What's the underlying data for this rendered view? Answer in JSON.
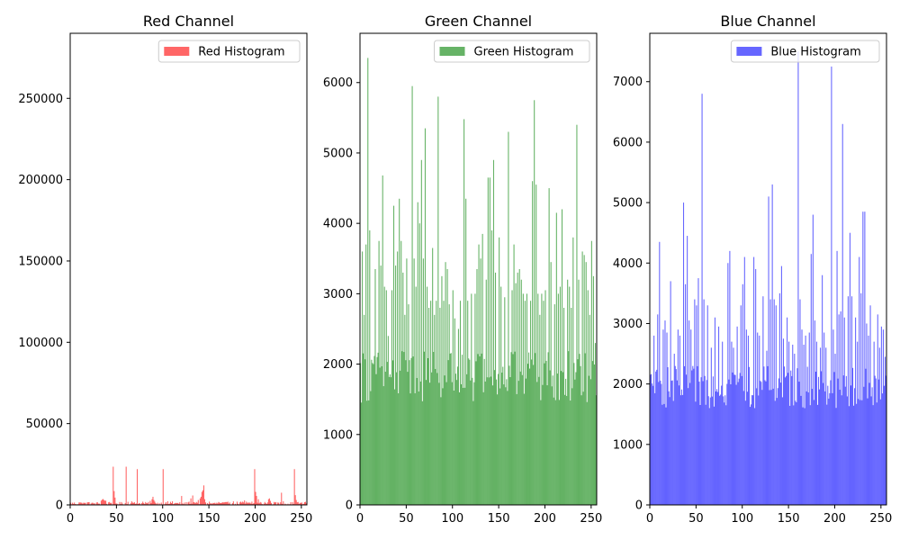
{
  "chart_data": [
    {
      "type": "bar",
      "title": "Red Channel",
      "color": "#ff0000",
      "opacity": 0.6,
      "legend": "Red Histogram",
      "legend_position": "upper-right",
      "xlim": [
        0,
        256
      ],
      "ylim": [
        0,
        290000
      ],
      "xticks": [
        0,
        50,
        100,
        150,
        200,
        250
      ],
      "yticks": [
        0,
        50000,
        100000,
        150000,
        200000,
        250000
      ],
      "baseline": {
        "low": 0,
        "high": 1800
      },
      "spikes": [
        [
          9,
          1500
        ],
        [
          10,
          1500
        ],
        [
          12,
          1300
        ],
        [
          20,
          1700
        ],
        [
          24,
          1300
        ],
        [
          33,
          2600
        ],
        [
          34,
          3200
        ],
        [
          35,
          3600
        ],
        [
          36,
          3000
        ],
        [
          37,
          2600
        ],
        [
          38,
          2600
        ],
        [
          42,
          1800
        ],
        [
          44,
          1300
        ],
        [
          46,
          23500
        ],
        [
          47,
          8500
        ],
        [
          48,
          4500
        ],
        [
          60,
          23500
        ],
        [
          62,
          1900
        ],
        [
          66,
          2200
        ],
        [
          72,
          22000
        ],
        [
          78,
          2000
        ],
        [
          86,
          2500
        ],
        [
          88,
          3500
        ],
        [
          89,
          5000
        ],
        [
          90,
          3000
        ],
        [
          91,
          2000
        ],
        [
          100,
          22000
        ],
        [
          105,
          2200
        ],
        [
          108,
          1900
        ],
        [
          110,
          2200
        ],
        [
          120,
          5500
        ],
        [
          128,
          2000
        ],
        [
          130,
          4000
        ],
        [
          132,
          5800
        ],
        [
          134,
          1500
        ],
        [
          138,
          3000
        ],
        [
          140,
          4000
        ],
        [
          141,
          5000
        ],
        [
          142,
          8000
        ],
        [
          143,
          9000
        ],
        [
          144,
          12000
        ],
        [
          145,
          3500
        ],
        [
          150,
          2000
        ],
        [
          160,
          1800
        ],
        [
          170,
          2000
        ],
        [
          172,
          1500
        ],
        [
          176,
          2200
        ],
        [
          180,
          2000
        ],
        [
          184,
          2000
        ],
        [
          186,
          2000
        ],
        [
          188,
          2800
        ],
        [
          190,
          2000
        ],
        [
          196,
          2000
        ],
        [
          199,
          22000
        ],
        [
          200,
          8000
        ],
        [
          201,
          5500
        ],
        [
          203,
          3500
        ],
        [
          205,
          1800
        ],
        [
          210,
          1800
        ],
        [
          214,
          3500
        ],
        [
          215,
          4000
        ],
        [
          216,
          2500
        ],
        [
          220,
          1800
        ],
        [
          228,
          7500
        ],
        [
          230,
          2200
        ],
        [
          242,
          22000
        ],
        [
          243,
          6000
        ],
        [
          244,
          3000
        ],
        [
          246,
          1800
        ],
        [
          250,
          1500
        ],
        [
          254,
          1900
        ]
      ]
    },
    {
      "type": "bar",
      "title": "Green Channel",
      "color": "#008000",
      "opacity": 0.6,
      "legend": "Green Histogram",
      "legend_position": "upper-right",
      "xlim": [
        0,
        256
      ],
      "ylim": [
        0,
        6700
      ],
      "xticks": [
        0,
        50,
        100,
        150,
        200,
        250
      ],
      "yticks": [
        0,
        1000,
        2000,
        3000,
        4000,
        5000,
        6000
      ],
      "baseline": {
        "low": 1450,
        "high": 2200
      },
      "spikes": [
        [
          2,
          3600
        ],
        [
          4,
          2700
        ],
        [
          6,
          3700
        ],
        [
          8,
          6350
        ],
        [
          10,
          3900
        ],
        [
          14,
          2000
        ],
        [
          16,
          3350
        ],
        [
          18,
          2100
        ],
        [
          20,
          3750
        ],
        [
          22,
          3400
        ],
        [
          24,
          4680
        ],
        [
          26,
          3100
        ],
        [
          28,
          3050
        ],
        [
          30,
          2400
        ],
        [
          34,
          3050
        ],
        [
          36,
          4250
        ],
        [
          38,
          3400
        ],
        [
          40,
          3600
        ],
        [
          42,
          4350
        ],
        [
          44,
          3750
        ],
        [
          46,
          3300
        ],
        [
          48,
          2700
        ],
        [
          50,
          3500
        ],
        [
          52,
          2850
        ],
        [
          56,
          5950
        ],
        [
          58,
          3500
        ],
        [
          60,
          3100
        ],
        [
          62,
          4300
        ],
        [
          64,
          4000
        ],
        [
          66,
          4900
        ],
        [
          68,
          3500
        ],
        [
          70,
          5350
        ],
        [
          72,
          3100
        ],
        [
          74,
          2800
        ],
        [
          76,
          2900
        ],
        [
          78,
          3650
        ],
        [
          80,
          2700
        ],
        [
          82,
          2900
        ],
        [
          84,
          5800
        ],
        [
          86,
          2800
        ],
        [
          88,
          3250
        ],
        [
          90,
          2900
        ],
        [
          92,
          3450
        ],
        [
          94,
          3350
        ],
        [
          96,
          2850
        ],
        [
          100,
          3050
        ],
        [
          102,
          2650
        ],
        [
          106,
          2500
        ],
        [
          108,
          2900
        ],
        [
          112,
          5480
        ],
        [
          114,
          4350
        ],
        [
          116,
          2900
        ],
        [
          120,
          3000
        ],
        [
          124,
          3000
        ],
        [
          126,
          3350
        ],
        [
          128,
          3700
        ],
        [
          130,
          3500
        ],
        [
          132,
          3850
        ],
        [
          136,
          3200
        ],
        [
          138,
          4650
        ],
        [
          140,
          4650
        ],
        [
          142,
          3900
        ],
        [
          144,
          4900
        ],
        [
          146,
          3300
        ],
        [
          150,
          3800
        ],
        [
          152,
          3100
        ],
        [
          156,
          2950
        ],
        [
          160,
          5300
        ],
        [
          164,
          3050
        ],
        [
          166,
          3700
        ],
        [
          168,
          3150
        ],
        [
          170,
          3300
        ],
        [
          172,
          3350
        ],
        [
          174,
          3200
        ],
        [
          176,
          3000
        ],
        [
          178,
          2900
        ],
        [
          180,
          3000
        ],
        [
          184,
          2900
        ],
        [
          186,
          4600
        ],
        [
          188,
          5750
        ],
        [
          190,
          4550
        ],
        [
          192,
          3000
        ],
        [
          194,
          2700
        ],
        [
          196,
          3000
        ],
        [
          198,
          2900
        ],
        [
          200,
          3050
        ],
        [
          204,
          4500
        ],
        [
          206,
          3450
        ],
        [
          210,
          2850
        ],
        [
          212,
          4150
        ],
        [
          214,
          3000
        ],
        [
          216,
          3100
        ],
        [
          218,
          4200
        ],
        [
          220,
          2800
        ],
        [
          224,
          3200
        ],
        [
          226,
          3100
        ],
        [
          228,
          2800
        ],
        [
          230,
          3800
        ],
        [
          234,
          5400
        ],
        [
          236,
          3200
        ],
        [
          240,
          3600
        ],
        [
          242,
          3550
        ],
        [
          244,
          3450
        ],
        [
          246,
          3050
        ],
        [
          248,
          2700
        ],
        [
          250,
          3750
        ],
        [
          252,
          3250
        ],
        [
          254,
          2300
        ]
      ]
    },
    {
      "type": "bar",
      "title": "Blue Channel",
      "color": "#0000ff",
      "opacity": 0.6,
      "legend": "Blue Histogram",
      "legend_position": "upper-right",
      "xlim": [
        0,
        256
      ],
      "ylim": [
        0,
        7800
      ],
      "xticks": [
        0,
        50,
        100,
        150,
        200,
        250
      ],
      "yticks": [
        0,
        1000,
        2000,
        3000,
        4000,
        5000,
        6000,
        7000
      ],
      "baseline": {
        "low": 1600,
        "high": 2300
      },
      "spikes": [
        [
          4,
          2800
        ],
        [
          8,
          3150
        ],
        [
          10,
          4350
        ],
        [
          14,
          2900
        ],
        [
          16,
          3050
        ],
        [
          18,
          2850
        ],
        [
          22,
          3700
        ],
        [
          26,
          2500
        ],
        [
          30,
          2900
        ],
        [
          32,
          2800
        ],
        [
          36,
          5000
        ],
        [
          38,
          3650
        ],
        [
          40,
          4450
        ],
        [
          42,
          3050
        ],
        [
          44,
          2900
        ],
        [
          48,
          3400
        ],
        [
          50,
          3300
        ],
        [
          52,
          3750
        ],
        [
          56,
          6800
        ],
        [
          58,
          3400
        ],
        [
          62,
          3300
        ],
        [
          66,
          2600
        ],
        [
          70,
          3100
        ],
        [
          74,
          2950
        ],
        [
          78,
          2700
        ],
        [
          84,
          4000
        ],
        [
          86,
          4200
        ],
        [
          88,
          2700
        ],
        [
          90,
          2600
        ],
        [
          94,
          2950
        ],
        [
          98,
          3300
        ],
        [
          100,
          3650
        ],
        [
          102,
          4100
        ],
        [
          104,
          2900
        ],
        [
          106,
          2800
        ],
        [
          112,
          4100
        ],
        [
          114,
          3900
        ],
        [
          116,
          2850
        ],
        [
          118,
          2800
        ],
        [
          122,
          3450
        ],
        [
          126,
          2550
        ],
        [
          128,
          5100
        ],
        [
          130,
          3400
        ],
        [
          132,
          5300
        ],
        [
          134,
          3400
        ],
        [
          136,
          3300
        ],
        [
          140,
          3500
        ],
        [
          142,
          3950
        ],
        [
          144,
          2750
        ],
        [
          148,
          3100
        ],
        [
          150,
          2700
        ],
        [
          154,
          2650
        ],
        [
          156,
          2500
        ],
        [
          160,
          7500
        ],
        [
          162,
          3400
        ],
        [
          164,
          2900
        ],
        [
          166,
          2650
        ],
        [
          168,
          2800
        ],
        [
          172,
          2850
        ],
        [
          174,
          4150
        ],
        [
          176,
          4800
        ],
        [
          178,
          3050
        ],
        [
          180,
          2700
        ],
        [
          184,
          2600
        ],
        [
          186,
          3800
        ],
        [
          188,
          2850
        ],
        [
          190,
          2600
        ],
        [
          196,
          7250
        ],
        [
          198,
          2900
        ],
        [
          200,
          2500
        ],
        [
          202,
          4200
        ],
        [
          204,
          3150
        ],
        [
          206,
          3200
        ],
        [
          208,
          6300
        ],
        [
          210,
          3100
        ],
        [
          214,
          3450
        ],
        [
          216,
          4500
        ],
        [
          218,
          3450
        ],
        [
          222,
          3100
        ],
        [
          224,
          2700
        ],
        [
          226,
          4100
        ],
        [
          228,
          3500
        ],
        [
          230,
          4850
        ],
        [
          232,
          4850
        ],
        [
          234,
          3000
        ],
        [
          236,
          2800
        ],
        [
          238,
          3300
        ],
        [
          242,
          2700
        ],
        [
          246,
          3150
        ],
        [
          248,
          2600
        ],
        [
          250,
          2950
        ],
        [
          252,
          2900
        ],
        [
          254,
          2450
        ]
      ]
    }
  ]
}
